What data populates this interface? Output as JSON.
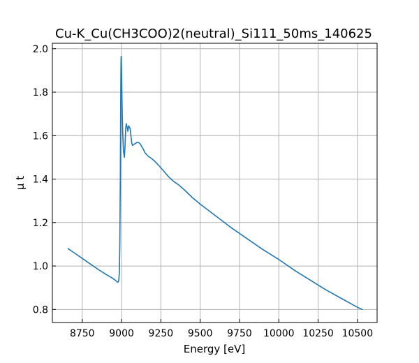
{
  "chart_data": {
    "type": "line",
    "title": "Cu-K_Cu(CH3COO)2(neutral)_Si111_50ms_140625",
    "xlabel": "Energy [eV]",
    "ylabel": "μ t",
    "xlim": [
      8560,
      10625
    ],
    "ylim": [
      0.74,
      2.025
    ],
    "grid": true,
    "x_ticks": [
      8750,
      9000,
      9250,
      9500,
      9750,
      10000,
      10250,
      10500
    ],
    "y_ticks": [
      0.8,
      1.0,
      1.2,
      1.4,
      1.6,
      1.8,
      2.0
    ],
    "x_tick_labels": [
      "8750",
      "9000",
      "9250",
      "9500",
      "9750",
      "10000",
      "10250",
      "10500"
    ],
    "y_tick_labels": [
      "0.8",
      "1.0",
      "1.2",
      "1.4",
      "1.6",
      "1.8",
      "2.0"
    ],
    "series": [
      {
        "color": "#1f77b4",
        "x": [
          8660,
          8700,
          8750,
          8800,
          8850,
          8900,
          8940,
          8965,
          8975,
          8980,
          8983,
          8986,
          8989,
          8992,
          8994,
          8996,
          8997,
          8998,
          9000,
          9003,
          9007,
          9012,
          9018,
          9022,
          9026,
          9030,
          9035,
          9040,
          9045,
          9050,
          9055,
          9060,
          9065,
          9070,
          9080,
          9090,
          9100,
          9110,
          9120,
          9130,
          9140,
          9150,
          9170,
          9190,
          9210,
          9240,
          9270,
          9300,
          9330,
          9360,
          9400,
          9450,
          9500,
          9600,
          9700,
          9800,
          9900,
          10000,
          10100,
          10200,
          10300,
          10400,
          10500,
          10530
        ],
        "y": [
          1.08,
          1.06,
          1.035,
          1.01,
          0.985,
          0.962,
          0.945,
          0.932,
          0.925,
          0.928,
          0.94,
          0.97,
          1.1,
          1.4,
          1.7,
          1.9,
          1.96,
          1.965,
          1.9,
          1.75,
          1.62,
          1.53,
          1.5,
          1.55,
          1.63,
          1.655,
          1.64,
          1.62,
          1.645,
          1.64,
          1.63,
          1.595,
          1.565,
          1.555,
          1.56,
          1.565,
          1.57,
          1.568,
          1.56,
          1.548,
          1.535,
          1.52,
          1.505,
          1.495,
          1.483,
          1.46,
          1.435,
          1.41,
          1.39,
          1.375,
          1.35,
          1.315,
          1.285,
          1.23,
          1.175,
          1.125,
          1.075,
          1.03,
          0.98,
          0.935,
          0.89,
          0.85,
          0.81,
          0.8
        ]
      }
    ]
  }
}
